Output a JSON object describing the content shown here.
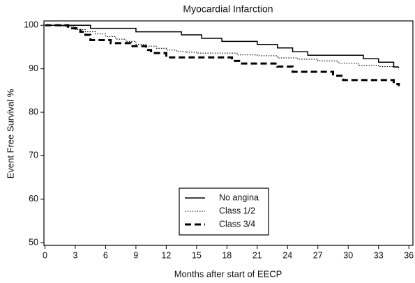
{
  "chart_data": {
    "type": "line",
    "step": true,
    "title": "Myocardial Infarction",
    "x_label": "Months after start of EECP",
    "y_label": "Event Free Survival %",
    "xlim": [
      -0.1,
      36.4
    ],
    "xticks": [
      0,
      3,
      6,
      9,
      12,
      15,
      18,
      21,
      24,
      27,
      30,
      33,
      36
    ],
    "ylim": [
      49.4,
      101
    ],
    "yticks": [
      50,
      60,
      70,
      80,
      90,
      100
    ],
    "legend": "bottom-center",
    "series": [
      {
        "name": "No angina",
        "color": "#000000",
        "dash": "solid",
        "x": [
          0,
          4.5,
          9,
          13.5,
          15.5,
          17.5,
          21,
          23,
          24.5,
          26,
          31.5,
          33,
          34.5,
          35
        ],
        "values": [
          100,
          99.3,
          98.5,
          97.8,
          97,
          96.3,
          95.6,
          94.8,
          93.9,
          93.1,
          92.3,
          91.5,
          90.4,
          90.4
        ]
      },
      {
        "name": "Class 1/2",
        "color": "#000000",
        "dash": "dotted",
        "x": [
          0,
          1.5,
          3,
          4,
          5,
          6,
          7,
          8,
          9,
          10,
          11,
          12,
          13,
          14,
          15,
          17,
          19,
          21,
          23,
          25,
          27,
          29,
          31,
          33,
          35
        ],
        "values": [
          100,
          99.7,
          99,
          98.5,
          98,
          97.4,
          96.8,
          96.3,
          95.6,
          95.2,
          94.7,
          94.3,
          94,
          93.8,
          93.6,
          93.6,
          93.2,
          93,
          92.5,
          92.2,
          91.8,
          91.3,
          90.8,
          90.5,
          89.8
        ]
      },
      {
        "name": "Class 3/4",
        "color": "#000000",
        "dash": "dashed",
        "x": [
          0,
          2.3,
          3.5,
          4,
          4.5,
          6.5,
          8.5,
          10,
          10.5,
          12,
          18.5,
          19.5,
          23,
          24.5,
          28.5,
          29.5,
          34.5,
          35
        ],
        "values": [
          100,
          99.3,
          98.5,
          97.8,
          96.6,
          95.9,
          95.2,
          94.3,
          93.6,
          92.6,
          91.8,
          91.2,
          90.5,
          89.3,
          88.4,
          87.4,
          86.5,
          86
        ]
      }
    ]
  }
}
